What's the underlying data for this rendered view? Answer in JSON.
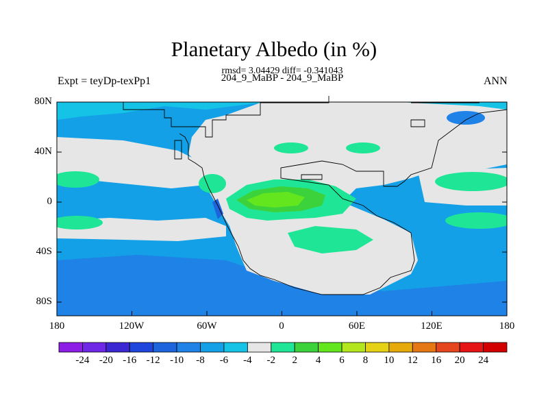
{
  "title": "Planetary Albedo (in %)",
  "stats": "rmsd= 3.04429 diff= -0.341043",
  "comparison": "204_9_MaBP - 204_9_MaBP",
  "left_label": "Expt = teyDp-texPp1",
  "right_label": "ANN",
  "lat_ticks": [
    "80N",
    "40N",
    "0",
    "40S",
    "80S"
  ],
  "lon_ticks": [
    "180",
    "120W",
    "60W",
    "0",
    "60E",
    "120E",
    "180"
  ],
  "colorbar": {
    "labels": [
      "-24",
      "-20",
      "-16",
      "-12",
      "-10",
      "-8",
      "-6",
      "-4",
      "-2",
      "2",
      "4",
      "6",
      "8",
      "10",
      "12",
      "16",
      "20",
      "24"
    ],
    "colors": [
      "#8c1ee6",
      "#6e28e6",
      "#3c28d2",
      "#1e46dc",
      "#1e64dc",
      "#1e82e6",
      "#14a0e6",
      "#14c3e6",
      "#e6e6e6",
      "#1ee696",
      "#3cd23c",
      "#64e61e",
      "#b4e61e",
      "#e6d214",
      "#e6aa0a",
      "#e67814",
      "#e6461e",
      "#e61414",
      "#d20000"
    ]
  },
  "palette": {
    "neutral": "#e6e6e6",
    "blue_light": "#14c3e6",
    "blue_mid": "#14a0e6",
    "blue_deep": "#1e82e6",
    "blue_dark": "#1e64dc",
    "green_teal": "#1ee696",
    "green": "#3cd23c",
    "yellow_green": "#64e61e"
  }
}
